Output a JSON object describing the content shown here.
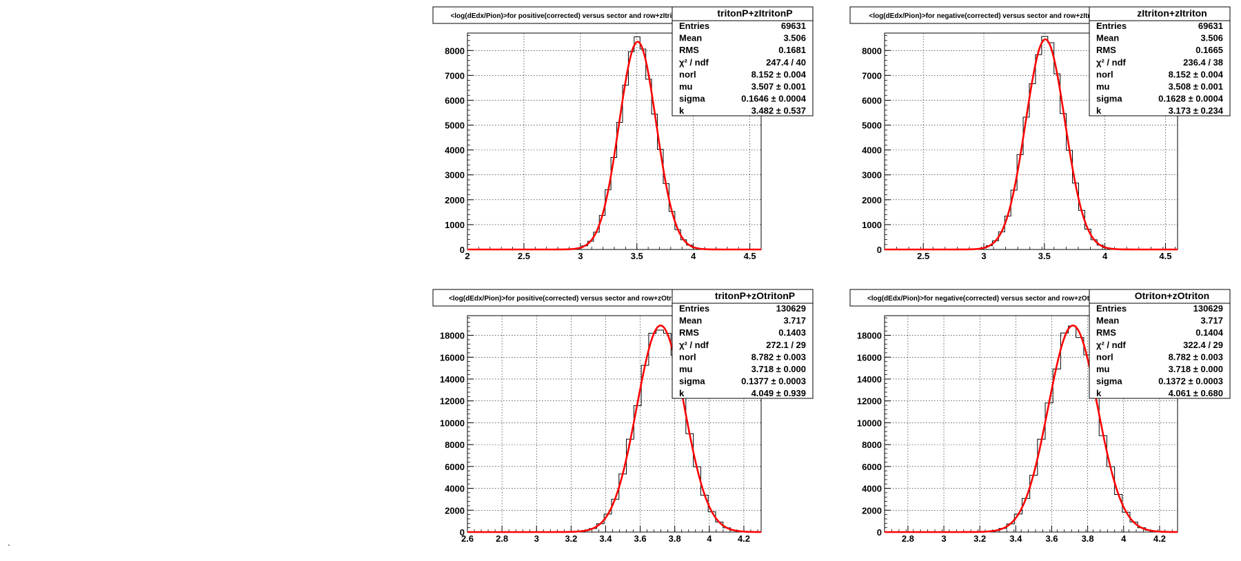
{
  "colors": {
    "histogram": "#000000",
    "fit": "#ff0000",
    "grid": "#000000",
    "frame": "#000000"
  },
  "chart_data": [
    {
      "type": "histogram",
      "title": "<log(dEdx/Pion)>for positive(corrected) versus sector and row+zItritonP",
      "stats_name": "tritonP+zItritonP",
      "xlim": [
        2.0,
        4.6
      ],
      "ylim": [
        0,
        8700
      ],
      "xticks": [
        2,
        2.5,
        3,
        3.5,
        4,
        4.5
      ],
      "xtick_labels": [
        "2",
        "2.5",
        "3",
        "3.5",
        "4",
        "4.5"
      ],
      "yticks": [
        0,
        1000,
        2000,
        3000,
        4000,
        5000,
        6000,
        7000,
        8000
      ],
      "ytick_labels": [
        "0",
        "1000",
        "2000",
        "3000",
        "4000",
        "5000",
        "6000",
        "7000",
        "8000"
      ],
      "grid": true,
      "fit": {
        "norl": 8.152,
        "mu": 3.507,
        "sigma": 0.1646,
        "peak": 8350
      },
      "stats": [
        {
          "label": "Entries",
          "value": "69631"
        },
        {
          "label": "Mean",
          "value": "3.506"
        },
        {
          "label": "RMS",
          "value": "0.1681"
        },
        {
          "label": "χ² / ndf",
          "value": "247.4 / 40"
        },
        {
          "label": "norl",
          "value": "8.152 ± 0.004"
        },
        {
          "label": "mu",
          "value": "3.507 ± 0.001"
        },
        {
          "label": "sigma",
          "value": "0.1646 ± 0.0004"
        },
        {
          "label": "k",
          "value": "3.482 ± 0.537"
        }
      ]
    },
    {
      "type": "histogram",
      "title": "<log(dEdx/Pion)>for negative(corrected) versus sector and row+zItriton",
      "stats_name": "zItriton+zItriton",
      "xlim": [
        2.18,
        4.6
      ],
      "ylim": [
        0,
        8700
      ],
      "xticks": [
        2.5,
        3,
        3.5,
        4,
        4.5
      ],
      "xtick_labels": [
        "2.5",
        "3",
        "3.5",
        "4",
        "4.5"
      ],
      "yticks": [
        0,
        1000,
        2000,
        3000,
        4000,
        5000,
        6000,
        7000,
        8000
      ],
      "ytick_labels": [
        "0",
        "1000",
        "2000",
        "3000",
        "4000",
        "5000",
        "6000",
        "7000",
        "8000"
      ],
      "grid": true,
      "fit": {
        "norl": 8.152,
        "mu": 3.508,
        "sigma": 0.1628,
        "peak": 8450
      },
      "stats": [
        {
          "label": "Entries",
          "value": "69631"
        },
        {
          "label": "Mean",
          "value": "3.506"
        },
        {
          "label": "RMS",
          "value": "0.1665"
        },
        {
          "label": "χ² / ndf",
          "value": "236.4 / 38"
        },
        {
          "label": "norl",
          "value": "8.152 ± 0.004"
        },
        {
          "label": "mu",
          "value": "3.508 ± 0.001"
        },
        {
          "label": "sigma",
          "value": "0.1628 ± 0.0004"
        },
        {
          "label": "k",
          "value": "3.173 ± 0.234"
        }
      ]
    },
    {
      "type": "histogram",
      "title": "<log(dEdx/Pion)>for positive(corrected) versus sector and row+zOtritonP",
      "stats_name": "tritonP+zOtritonP",
      "xlim": [
        2.6,
        4.3
      ],
      "ylim": [
        0,
        19800
      ],
      "xticks": [
        2.6,
        2.8,
        3,
        3.2,
        3.4,
        3.6,
        3.8,
        4,
        4.2
      ],
      "xtick_labels": [
        "2.6",
        "2.8",
        "3",
        "3.2",
        "3.4",
        "3.6",
        "3.8",
        "4",
        "4.2"
      ],
      "yticks": [
        0,
        2000,
        4000,
        6000,
        8000,
        10000,
        12000,
        14000,
        16000,
        18000
      ],
      "ytick_labels": [
        "0",
        "2000",
        "4000",
        "6000",
        "8000",
        "10000",
        "12000",
        "14000",
        "16000",
        "18000"
      ],
      "grid": true,
      "fit": {
        "norl": 8.782,
        "mu": 3.718,
        "sigma": 0.1377,
        "peak": 18900
      },
      "stats": [
        {
          "label": "Entries",
          "value": "130629"
        },
        {
          "label": "Mean",
          "value": "3.717"
        },
        {
          "label": "RMS",
          "value": "0.1403"
        },
        {
          "label": "χ² / ndf",
          "value": "272.1 / 29"
        },
        {
          "label": "norl",
          "value": "8.782 ± 0.003"
        },
        {
          "label": "mu",
          "value": "3.718 ± 0.000"
        },
        {
          "label": "sigma",
          "value": "0.1377 ± 0.0003"
        },
        {
          "label": "k",
          "value": "4.049 ± 0.939"
        }
      ]
    },
    {
      "type": "histogram",
      "title": "<log(dEdx/Pion)>for negative(corrected) versus sector and row+zOtriton",
      "stats_name": "Otriton+zOtriton",
      "xlim": [
        2.67,
        4.3
      ],
      "ylim": [
        0,
        19800
      ],
      "xticks": [
        2.8,
        3,
        3.2,
        3.4,
        3.6,
        3.8,
        4,
        4.2
      ],
      "xtick_labels": [
        "2.8",
        "3",
        "3.2",
        "3.4",
        "3.6",
        "3.8",
        "4",
        "4.2"
      ],
      "yticks": [
        0,
        2000,
        4000,
        6000,
        8000,
        10000,
        12000,
        14000,
        16000,
        18000
      ],
      "ytick_labels": [
        "0",
        "2000",
        "4000",
        "6000",
        "8000",
        "10000",
        "12000",
        "14000",
        "16000",
        "18000"
      ],
      "grid": true,
      "fit": {
        "norl": 8.782,
        "mu": 3.718,
        "sigma": 0.1372,
        "peak": 18900
      },
      "stats": [
        {
          "label": "Entries",
          "value": "130629"
        },
        {
          "label": "Mean",
          "value": "3.717"
        },
        {
          "label": "RMS",
          "value": "0.1404"
        },
        {
          "label": "χ² / ndf",
          "value": "322.4 / 29"
        },
        {
          "label": "norl",
          "value": "8.782 ± 0.003"
        },
        {
          "label": "mu",
          "value": "3.718 ± 0.000"
        },
        {
          "label": "sigma",
          "value": "0.1372 ± 0.0003"
        },
        {
          "label": "k",
          "value": "4.061 ± 0.680"
        }
      ]
    }
  ]
}
